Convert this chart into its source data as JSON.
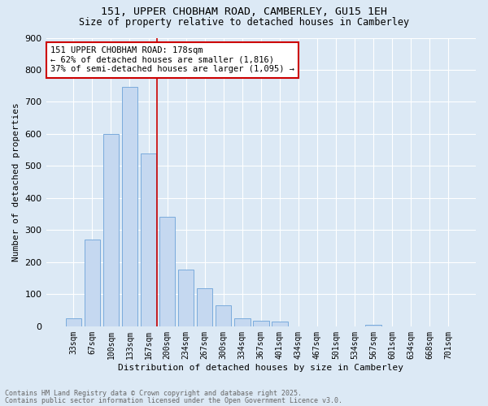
{
  "title1": "151, UPPER CHOBHAM ROAD, CAMBERLEY, GU15 1EH",
  "title2": "Size of property relative to detached houses in Camberley",
  "xlabel": "Distribution of detached houses by size in Camberley",
  "ylabel": "Number of detached properties",
  "bar_color": "#c5d8f0",
  "bar_edge_color": "#7aabdc",
  "background_color": "#dce9f5",
  "grid_color": "#ffffff",
  "categories": [
    "33sqm",
    "67sqm",
    "100sqm",
    "133sqm",
    "167sqm",
    "200sqm",
    "234sqm",
    "267sqm",
    "300sqm",
    "334sqm",
    "367sqm",
    "401sqm",
    "434sqm",
    "467sqm",
    "501sqm",
    "534sqm",
    "567sqm",
    "601sqm",
    "634sqm",
    "668sqm",
    "701sqm"
  ],
  "values": [
    25,
    270,
    600,
    748,
    538,
    342,
    178,
    118,
    65,
    25,
    18,
    14,
    0,
    0,
    0,
    0,
    5,
    0,
    0,
    0,
    0
  ],
  "vline_x_index": 4.45,
  "vline_color": "#cc0000",
  "annotation_text": "151 UPPER CHOBHAM ROAD: 178sqm\n← 62% of detached houses are smaller (1,816)\n37% of semi-detached houses are larger (1,095) →",
  "annotation_box_color": "#ffffff",
  "annotation_box_edge": "#cc0000",
  "ylim": [
    0,
    900
  ],
  "yticks": [
    0,
    100,
    200,
    300,
    400,
    500,
    600,
    700,
    800,
    900
  ],
  "footer1": "Contains HM Land Registry data © Crown copyright and database right 2025.",
  "footer2": "Contains public sector information licensed under the Open Government Licence v3.0."
}
